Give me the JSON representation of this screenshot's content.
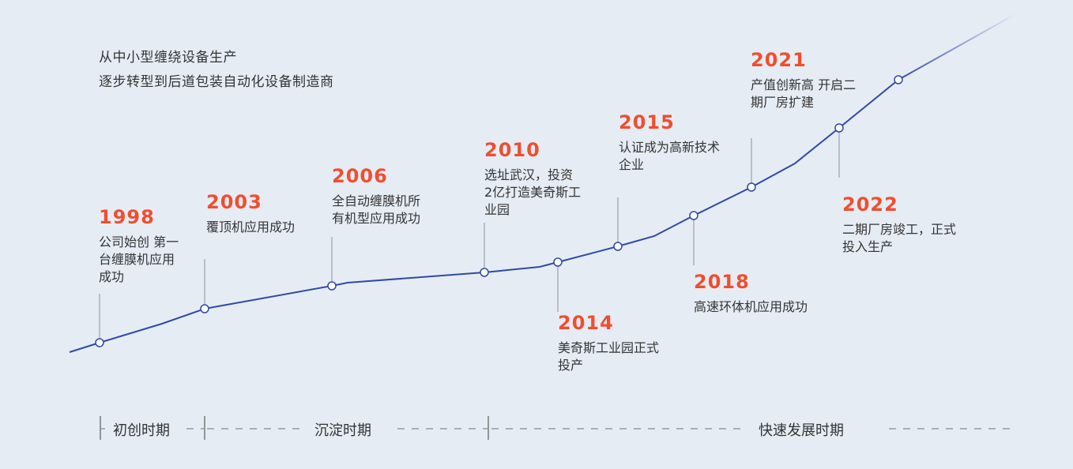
{
  "intro": [
    "从中小型缠绕设备生产",
    "逐步转型到后道包装自动化设备制造商"
  ],
  "colors": {
    "line": "#2f4aa8",
    "year": "#f04e2f",
    "stem": "#a9b0bb",
    "background": "#e6ecf4"
  },
  "events": [
    {
      "year": "1998",
      "text": "公司始创 第一\n台缠膜机应用\n成功"
    },
    {
      "year": "2003",
      "text": "覆顶机应用成功"
    },
    {
      "year": "2006",
      "text": "全自动缠膜机所\n有机型应用成功"
    },
    {
      "year": "2010",
      "text": "选址武汉，投资\n2亿打造美奇斯工\n业园"
    },
    {
      "year": "2014",
      "text": "美奇斯工业园正式\n投产"
    },
    {
      "year": "2015",
      "text": "认证成为高新技术\n企业"
    },
    {
      "year": "2018",
      "text": "高速环体机应用成功"
    },
    {
      "year": "2021",
      "text": "产值创新高 开启二\n期厂房扩建"
    },
    {
      "year": "2022",
      "text": "二期厂房竣工，正式\n投入生产"
    }
  ],
  "periods": [
    "初创时期",
    "沉淀时期",
    "快速发展时期"
  ]
}
